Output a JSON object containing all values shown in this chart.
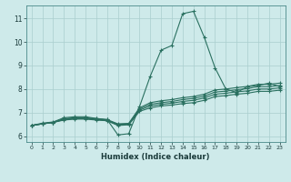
{
  "xlabel": "Humidex (Indice chaleur)",
  "background_color": "#ceeaea",
  "grid_color": "#aacece",
  "line_color": "#2a7060",
  "xlim": [
    -0.5,
    23.5
  ],
  "ylim": [
    5.75,
    11.55
  ],
  "xticks": [
    0,
    1,
    2,
    3,
    4,
    5,
    6,
    7,
    8,
    9,
    10,
    11,
    12,
    13,
    14,
    15,
    16,
    17,
    18,
    19,
    20,
    21,
    22,
    23
  ],
  "yticks": [
    6,
    7,
    8,
    9,
    10,
    11
  ],
  "series": [
    [
      6.45,
      6.55,
      6.6,
      6.78,
      6.82,
      6.82,
      6.75,
      6.7,
      6.05,
      6.1,
      7.25,
      8.55,
      9.65,
      9.85,
      11.2,
      11.3,
      10.2,
      8.9,
      8.0,
      7.85,
      8.1,
      8.15,
      8.25,
      8.1
    ],
    [
      6.45,
      6.52,
      6.58,
      6.68,
      6.72,
      6.72,
      6.68,
      6.65,
      6.45,
      6.48,
      7.05,
      7.2,
      7.28,
      7.32,
      7.38,
      7.42,
      7.52,
      7.68,
      7.72,
      7.78,
      7.82,
      7.9,
      7.9,
      7.95
    ],
    [
      6.45,
      6.52,
      6.58,
      6.7,
      6.74,
      6.74,
      6.7,
      6.66,
      6.48,
      6.5,
      7.1,
      7.28,
      7.35,
      7.4,
      7.47,
      7.52,
      7.62,
      7.78,
      7.82,
      7.88,
      7.92,
      8.0,
      8.0,
      8.05
    ],
    [
      6.45,
      6.52,
      6.58,
      6.72,
      6.76,
      6.76,
      6.72,
      6.68,
      6.5,
      6.52,
      7.15,
      7.35,
      7.42,
      7.47,
      7.55,
      7.6,
      7.7,
      7.87,
      7.91,
      7.97,
      8.02,
      8.1,
      8.1,
      8.15
    ],
    [
      6.45,
      6.52,
      6.58,
      6.74,
      6.78,
      6.78,
      6.74,
      6.7,
      6.52,
      6.54,
      7.2,
      7.42,
      7.5,
      7.55,
      7.63,
      7.68,
      7.78,
      7.96,
      8.0,
      8.06,
      8.11,
      8.2,
      8.2,
      8.25
    ]
  ]
}
